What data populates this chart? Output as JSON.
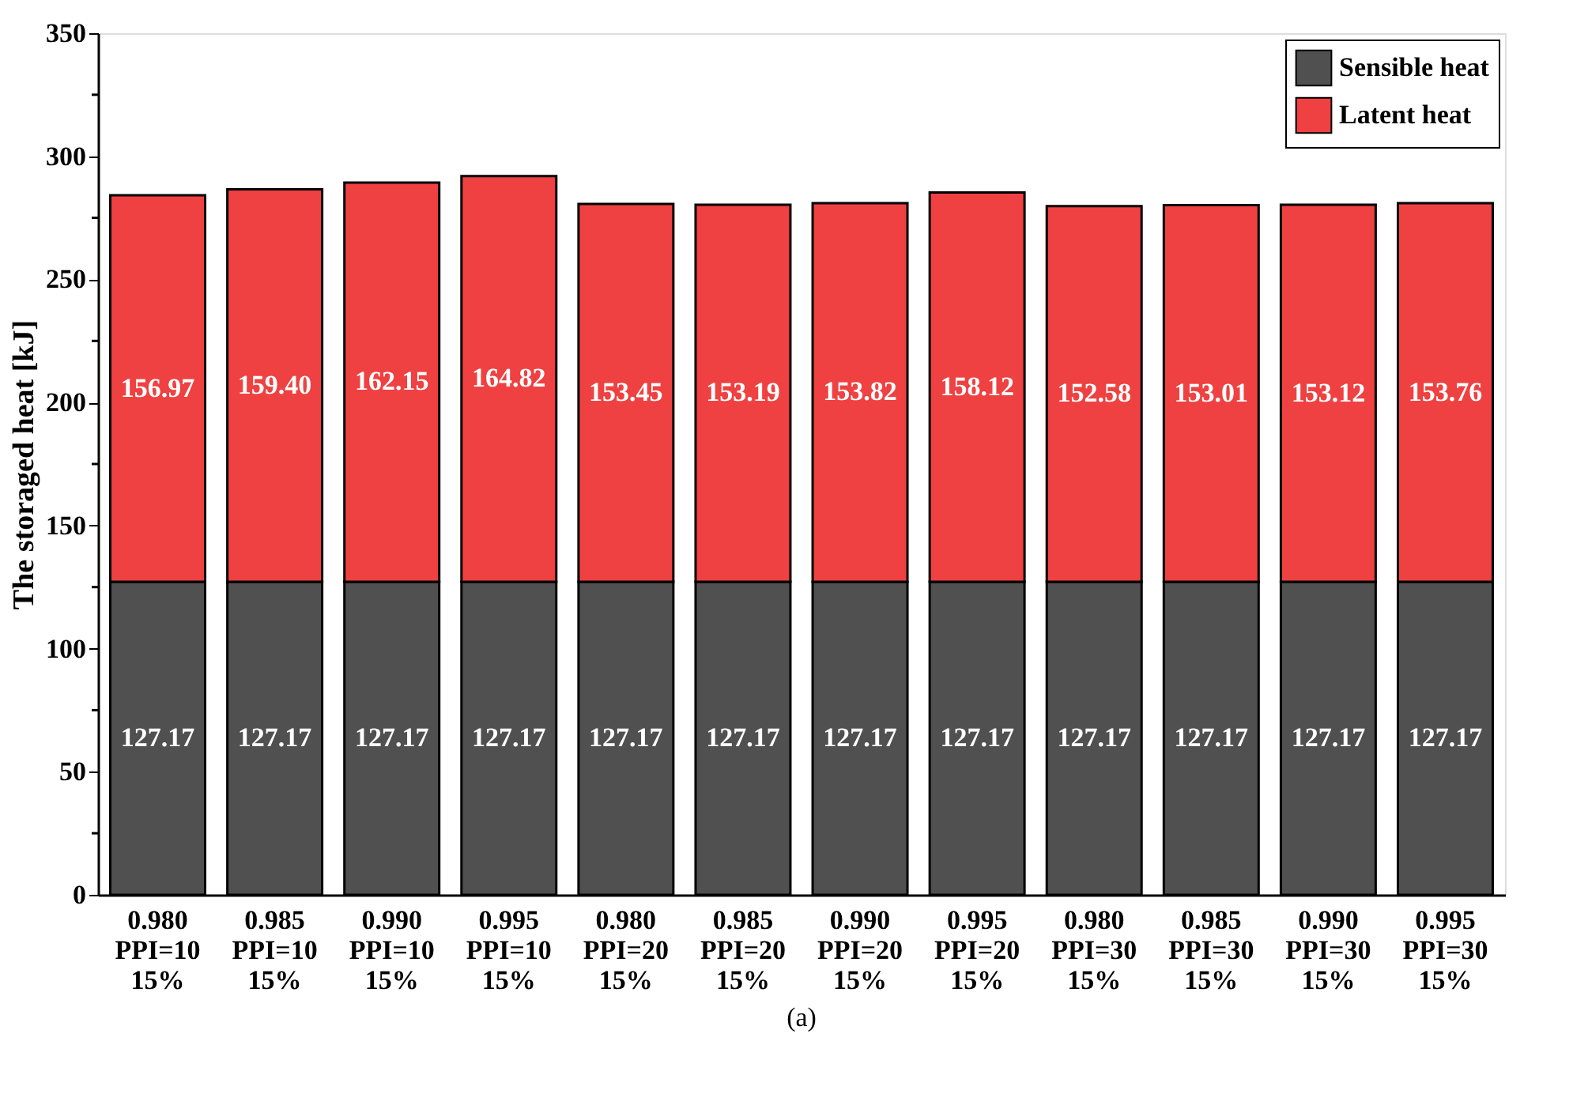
{
  "chart_data": {
    "type": "bar",
    "stacked": true,
    "ylabel": "The storaged heat [kJ]",
    "annotations": [
      "(a)"
    ],
    "categories": [
      "0.980\nPPI=10\n15%",
      "0.985\nPPI=10\n15%",
      "0.990\nPPI=10\n15%",
      "0.995\nPPI=10\n15%",
      "0.980\nPPI=20\n15%",
      "0.985\nPPI=20\n15%",
      "0.990\nPPI=20\n15%",
      "0.995\nPPI=20\n15%",
      "0.980\nPPI=30\n15%",
      "0.985\nPPI=30\n15%",
      "0.990\nPPI=30\n15%",
      "0.995\nPPI=30\n15%"
    ],
    "series": [
      {
        "name": "Sensible heat",
        "color": "#505050",
        "values": [
          127.17,
          127.17,
          127.17,
          127.17,
          127.17,
          127.17,
          127.17,
          127.17,
          127.17,
          127.17,
          127.17,
          127.17
        ],
        "value_labels": [
          "127.17",
          "127.17",
          "127.17",
          "127.17",
          "127.17",
          "127.17",
          "127.17",
          "127.17",
          "127.17",
          "127.17",
          "127.17",
          "127.17"
        ]
      },
      {
        "name": "Latent heat",
        "color": "#ef4141",
        "values": [
          156.97,
          159.4,
          162.15,
          164.82,
          153.45,
          153.19,
          153.82,
          158.12,
          152.58,
          153.01,
          153.12,
          153.76
        ],
        "value_labels": [
          "156.97",
          "159.40",
          "162.15",
          "164.82",
          "153.45",
          "153.19",
          "153.82",
          "158.12",
          "152.58",
          "153.01",
          "153.12",
          "153.76"
        ]
      }
    ],
    "ylim": [
      0,
      350
    ],
    "yticks": [
      0,
      {
        "value": 25,
        "label": null
      },
      50,
      {
        "value": 75,
        "label": null
      },
      100,
      {
        "value": 125,
        "label": null
      },
      150,
      {
        "value": 175,
        "label": null
      },
      200,
      {
        "value": 225,
        "label": null
      },
      250,
      {
        "value": 275,
        "label": null
      },
      300,
      {
        "value": 325,
        "label": null
      },
      350
    ],
    "legend": "top right",
    "grid": false
  }
}
